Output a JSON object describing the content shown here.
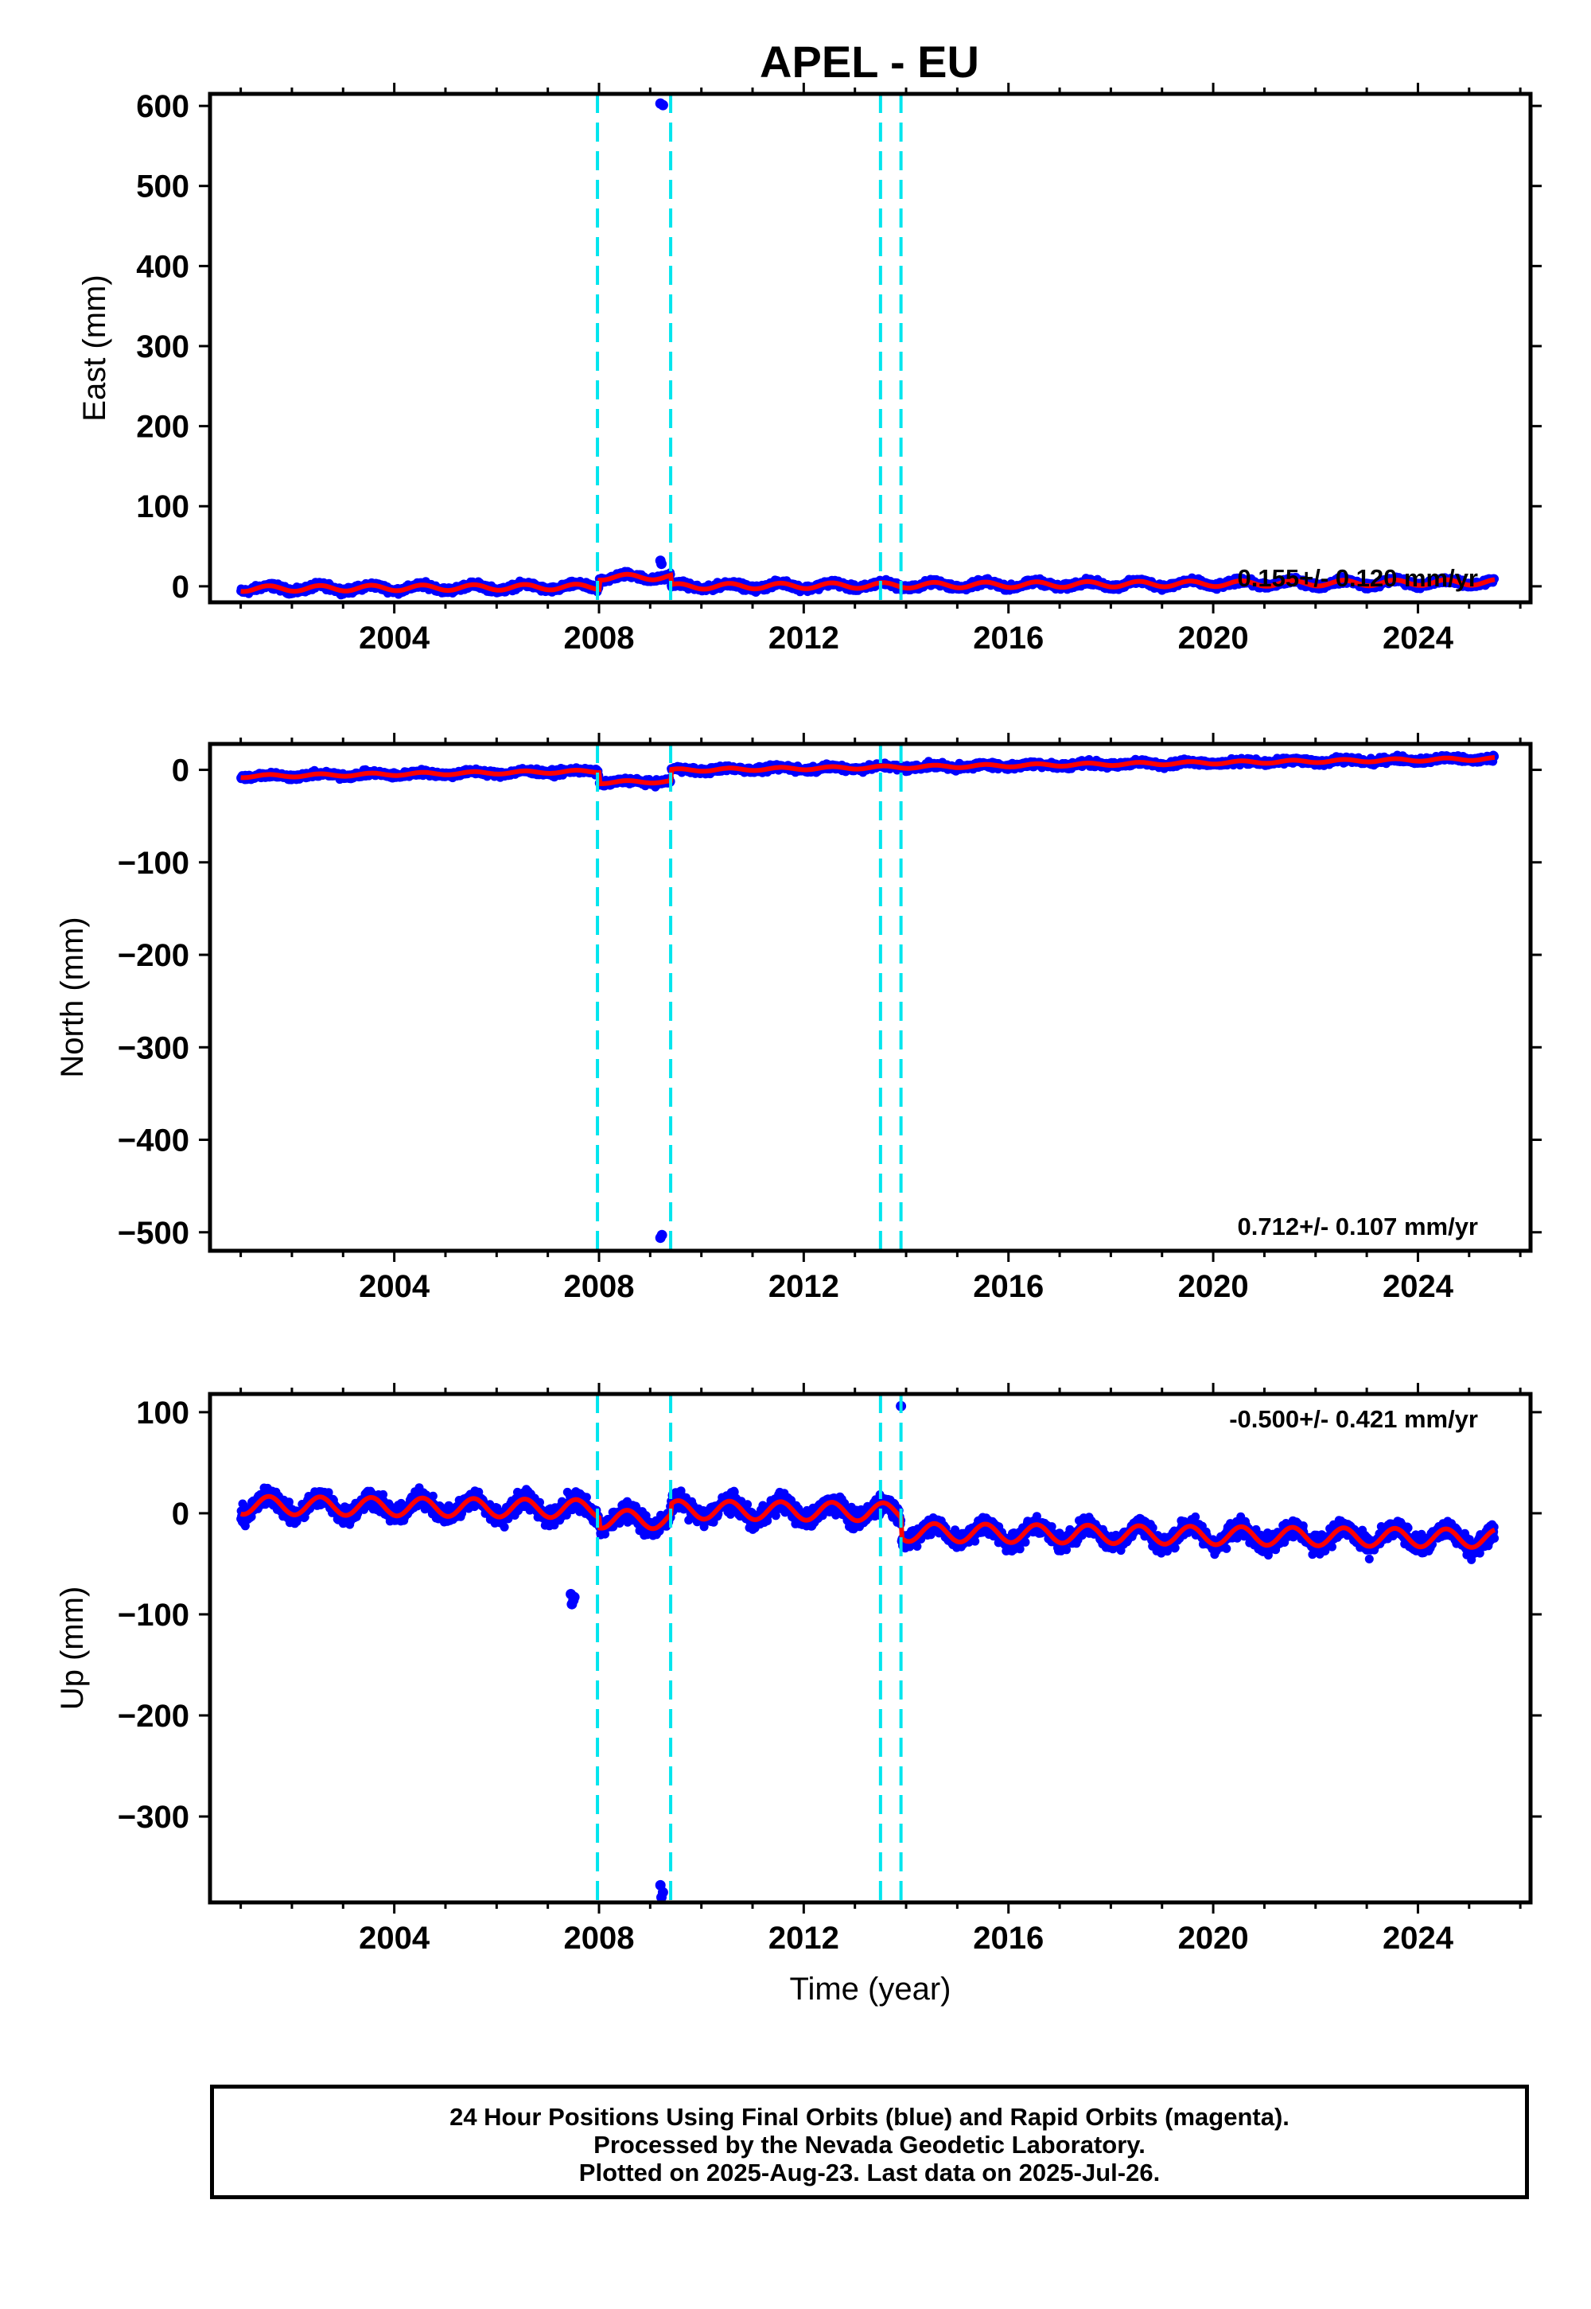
{
  "caption": {
    "line1": "24 Hour Positions Using Final Orbits (blue) and Rapid Orbits (magenta).",
    "line2": "Processed by the Nevada Geodetic Laboratory.",
    "line3": "Plotted on 2025-Aug-23. Last data on 2025-Jul-26."
  },
  "colors": {
    "final": "#0000ff",
    "model": "#ff0000",
    "breaks": "#00e5ee",
    "frame": "#000000"
  },
  "chart_data": [
    {
      "type": "scatter",
      "title": "APEL - EU",
      "ylabel": "East (mm)",
      "xlabel": "",
      "xlim": [
        2000.4,
        2026.2
      ],
      "ylim": [
        -20,
        615
      ],
      "xticks": [
        2004,
        2008,
        2012,
        2016,
        2020,
        2024
      ],
      "yticks": [
        0,
        100,
        200,
        300,
        400,
        500,
        600
      ],
      "rate_text": "0.155+/- 0.120 mm/yr",
      "breaks": [
        2007.97,
        2009.4,
        2013.5,
        2013.9
      ],
      "outliers": [
        [
          2009.2,
          603
        ],
        [
          2009.25,
          601
        ],
        [
          2009.2,
          32
        ],
        [
          2009.22,
          28
        ]
      ],
      "trend": {
        "start": [
          2001.0,
          -3
        ],
        "end": [
          2025.5,
          5
        ],
        "rate": 0.155
      },
      "seasonal": {
        "amp": 3.5,
        "noise": 3
      },
      "model_offsets": [
        [
          2008.0,
          2009.4,
          12
        ]
      ]
    },
    {
      "type": "scatter",
      "title": "",
      "ylabel": "North (mm)",
      "xlabel": "",
      "xlim": [
        2000.4,
        2026.2
      ],
      "ylim": [
        -520,
        28
      ],
      "xticks": [
        2004,
        2008,
        2012,
        2016,
        2020,
        2024
      ],
      "yticks": [
        0,
        -100,
        -200,
        -300,
        -400,
        -500
      ],
      "rate_text": "0.712+/- 0.107 mm/yr",
      "breaks": [
        2007.97,
        2009.4,
        2013.5,
        2013.9
      ],
      "outliers": [
        [
          2009.2,
          -506
        ],
        [
          2009.23,
          -503
        ]
      ],
      "trend": {
        "start": [
          2001.0,
          -7
        ],
        "end": [
          2025.5,
          12
        ],
        "rate": 0.712
      },
      "seasonal": {
        "amp": 1.5,
        "noise": 2.5
      },
      "model_offsets": [
        [
          2008.0,
          2009.4,
          -12
        ]
      ]
    },
    {
      "type": "scatter",
      "title": "",
      "ylabel": "Up (mm)",
      "xlabel": "Time (year)",
      "xlim": [
        2000.4,
        2026.2
      ],
      "ylim": [
        -385,
        118
      ],
      "xticks": [
        2004,
        2008,
        2012,
        2016,
        2020,
        2024
      ],
      "yticks": [
        100,
        0,
        -100,
        -200,
        -300
      ],
      "rate_text": "-0.500+/- 0.421 mm/yr",
      "breaks": [
        2007.97,
        2009.4,
        2013.5,
        2013.9
      ],
      "outliers": [
        [
          2007.45,
          -80
        ],
        [
          2007.5,
          -86
        ],
        [
          2007.47,
          -90
        ],
        [
          2007.52,
          -83
        ],
        [
          2009.2,
          -368
        ],
        [
          2009.25,
          -375
        ],
        [
          2009.22,
          -380
        ],
        [
          2013.9,
          106
        ]
      ],
      "trend": {
        "start": [
          2001.0,
          8
        ],
        "end": [
          2025.5,
          -5
        ],
        "rate": -0.5
      },
      "seasonal": {
        "amp": 9,
        "noise": 7
      },
      "model_offsets": [
        [
          2008.0,
          2009.4,
          -10
        ],
        [
          2013.9,
          2026.0,
          -20
        ]
      ]
    }
  ]
}
